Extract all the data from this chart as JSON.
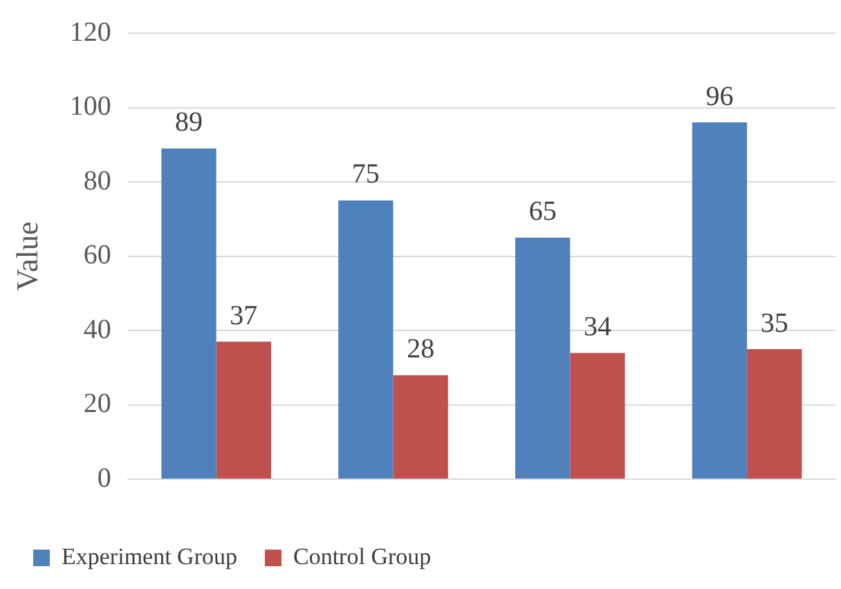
{
  "chart_data": {
    "type": "bar",
    "ylabel": "Value",
    "categories": [
      null,
      null,
      null,
      null
    ],
    "series": [
      {
        "name": "Experiment Group",
        "color": "#4f81bd",
        "values": [
          89,
          75,
          65,
          96
        ]
      },
      {
        "name": "Control Group",
        "color": "#c0504d",
        "values": [
          37,
          28,
          34,
          35
        ]
      }
    ],
    "ylim": [
      0,
      120
    ],
    "yticks": [
      0,
      20,
      40,
      60,
      80,
      100,
      120
    ],
    "grid": "y",
    "legend": "bottom",
    "data_labels": true
  }
}
